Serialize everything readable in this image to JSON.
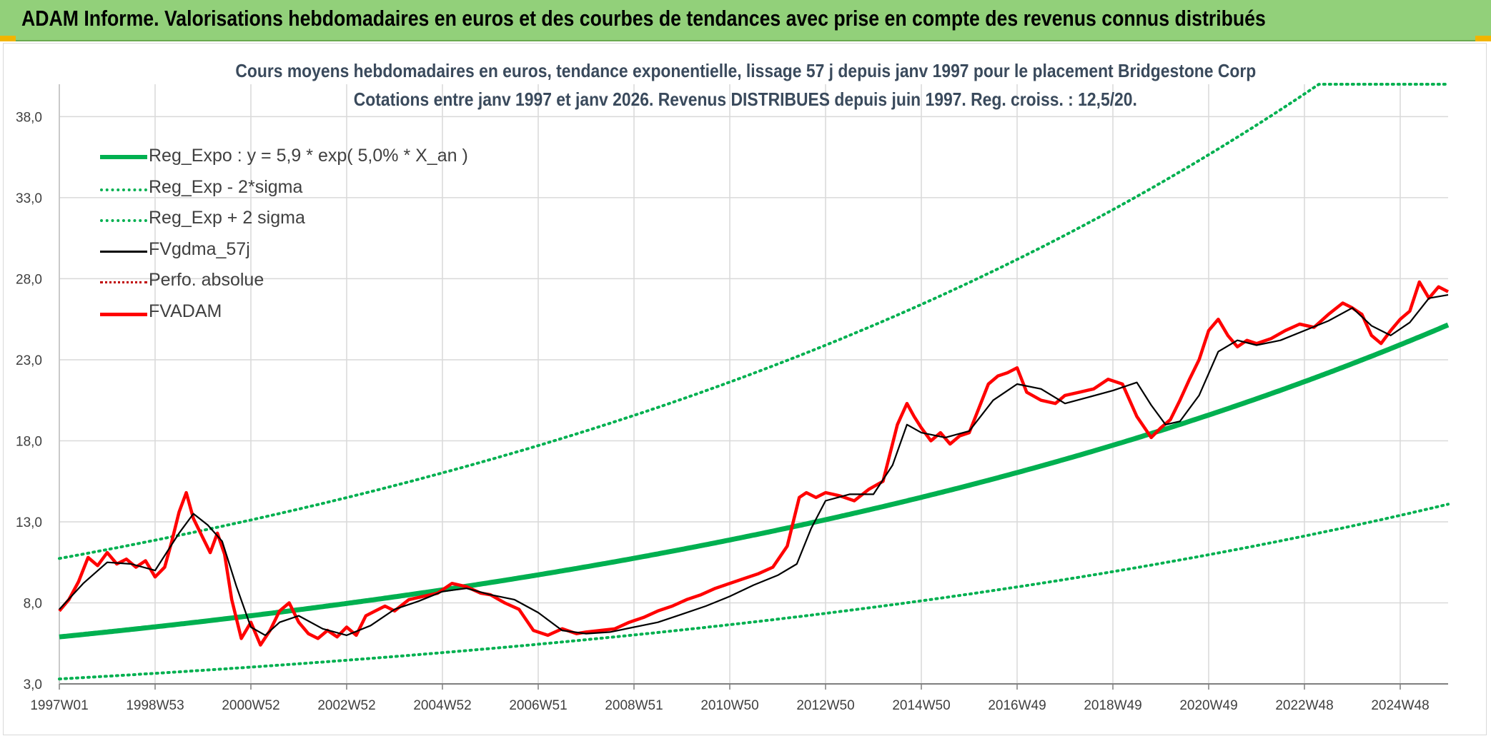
{
  "banner": {
    "title": "ADAM Informe. Valorisations hebdomadaires en euros et des courbes de tendances avec prise en compte des revenus connus distribués"
  },
  "colors": {
    "banner_bg": "#92d07a",
    "reg_expo": "#00b050",
    "fvgdma": "#000000",
    "perfo": "#c00000",
    "fvadam": "#ff0000",
    "grid": "#d9d9d9",
    "corner": "#f2b400"
  },
  "chart_data": {
    "type": "line",
    "title": "Cours moyens hebdomadaires en euros, tendance exponentielle, lissage 57 j depuis janv 1997 pour le placement Bridgestone Corp",
    "subtitle": "Cotations entre janv 1997 et janv 2026. Revenus DISTRIBUES depuis juin 1997. Reg. croiss. : 12,5/20.",
    "xlabel": "",
    "ylabel": "",
    "x_ticks": [
      "1997W01",
      "1998W53",
      "2000W52",
      "2002W52",
      "2004W52",
      "2006W51",
      "2008W51",
      "2010W50",
      "2012W50",
      "2014W50",
      "2016W49",
      "2018W49",
      "2020W49",
      "2022W48",
      "2024W48"
    ],
    "x_range": [
      1997.0,
      2026.0
    ],
    "y_ticks": [
      "3,0",
      "8,0",
      "13,0",
      "18,0",
      "23,0",
      "28,0",
      "33,0",
      "38,0"
    ],
    "ylim": [
      3.0,
      40.0
    ],
    "grid": true,
    "legend_position": "top-left",
    "legend": [
      {
        "label": "Reg_Expo : y = 5,9 * exp( 5,0% *  X_an )",
        "style": "solid-thick",
        "color": "#00b050"
      },
      {
        "label": "Reg_Exp - 2*sigma",
        "style": "dotted",
        "color": "#00b050"
      },
      {
        "label": "Reg_Exp + 2 sigma",
        "style": "dotted",
        "color": "#00b050"
      },
      {
        "label": "FVgdma_57j",
        "style": "solid",
        "color": "#000000"
      },
      {
        "label": "Perfo. absolue",
        "style": "dotted",
        "color": "#c00000"
      },
      {
        "label": "FVADAM",
        "style": "solid-thick",
        "color": "#ff0000"
      }
    ],
    "regression": {
      "a": 5.9,
      "rate": 0.05,
      "x_start": 1997.0,
      "lower_factor": 0.56,
      "upper_factor": 1.82,
      "cap": 40.0
    },
    "series": [
      {
        "name": "FVADAM",
        "x": [
          1997.0,
          1997.2,
          1997.4,
          1997.6,
          1997.8,
          1998.0,
          1998.2,
          1998.4,
          1998.6,
          1998.8,
          1999.0,
          1999.2,
          1999.35,
          1999.5,
          1999.65,
          1999.8,
          2000.0,
          2000.15,
          2000.3,
          2000.45,
          2000.6,
          2000.8,
          2001.0,
          2001.2,
          2001.4,
          2001.6,
          2001.8,
          2002.0,
          2002.2,
          2002.4,
          2002.6,
          2002.8,
          2003.0,
          2003.2,
          2003.4,
          2003.6,
          2003.8,
          2004.0,
          2004.3,
          2004.6,
          2004.9,
          2005.2,
          2005.5,
          2005.8,
          2006.0,
          2006.3,
          2006.6,
          2006.9,
          2007.2,
          2007.5,
          2007.8,
          2008.0,
          2008.3,
          2008.6,
          2008.9,
          2009.2,
          2009.5,
          2009.8,
          2010.1,
          2010.4,
          2010.7,
          2011.0,
          2011.3,
          2011.6,
          2011.9,
          2012.2,
          2012.45,
          2012.6,
          2012.8,
          2013.0,
          2013.3,
          2013.6,
          2013.9,
          2014.2,
          2014.5,
          2014.7,
          2014.85,
          2015.0,
          2015.2,
          2015.4,
          2015.6,
          2015.8,
          2016.0,
          2016.2,
          2016.4,
          2016.6,
          2016.8,
          2017.0,
          2017.2,
          2017.5,
          2017.8,
          2018.0,
          2018.3,
          2018.6,
          2018.9,
          2019.2,
          2019.5,
          2019.8,
          2020.0,
          2020.2,
          2020.4,
          2020.6,
          2020.8,
          2021.0,
          2021.2,
          2021.4,
          2021.6,
          2021.8,
          2022.0,
          2022.3,
          2022.6,
          2022.9,
          2023.2,
          2023.5,
          2023.8,
          2024.0,
          2024.2,
          2024.4,
          2024.6,
          2024.8,
          2025.0,
          2025.2,
          2025.4,
          2025.6,
          2025.8,
          2026.0
        ],
        "values": [
          7.5,
          8.2,
          9.3,
          10.8,
          10.3,
          11.1,
          10.4,
          10.7,
          10.2,
          10.6,
          9.6,
          10.2,
          11.8,
          13.6,
          14.8,
          13.2,
          12.0,
          11.1,
          12.3,
          11.0,
          8.2,
          5.8,
          6.8,
          5.4,
          6.3,
          7.5,
          8.0,
          6.8,
          6.1,
          5.8,
          6.3,
          5.9,
          6.5,
          6.0,
          7.2,
          7.5,
          7.8,
          7.5,
          8.2,
          8.4,
          8.6,
          9.2,
          9.0,
          8.6,
          8.5,
          8.0,
          7.6,
          6.3,
          6.0,
          6.4,
          6.1,
          6.2,
          6.3,
          6.4,
          6.8,
          7.1,
          7.5,
          7.8,
          8.2,
          8.5,
          8.9,
          9.2,
          9.5,
          9.8,
          10.2,
          11.5,
          14.5,
          14.8,
          14.5,
          14.8,
          14.6,
          14.3,
          15.0,
          15.5,
          19.0,
          20.3,
          19.5,
          18.8,
          18.0,
          18.5,
          17.8,
          18.3,
          18.5,
          20.0,
          21.5,
          22.0,
          22.2,
          22.5,
          21.0,
          20.5,
          20.3,
          20.8,
          21.0,
          21.2,
          21.8,
          21.5,
          19.5,
          18.2,
          18.8,
          19.3,
          20.5,
          21.8,
          23.0,
          24.8,
          25.5,
          24.5,
          23.8,
          24.2,
          24.0,
          24.3,
          24.8,
          25.2,
          25.0,
          25.8,
          26.5,
          26.2,
          25.8,
          24.5,
          24.0,
          24.8,
          25.5,
          26.0,
          27.8,
          26.8,
          27.5,
          27.2
        ]
      },
      {
        "name": "FVgdma_57j",
        "x": [
          1997.0,
          1997.5,
          1998.0,
          1998.5,
          1999.0,
          1999.5,
          1999.8,
          2000.1,
          2000.4,
          2000.7,
          2001.0,
          2001.3,
          2001.6,
          2002.0,
          2002.5,
          2003.0,
          2003.5,
          2004.0,
          2004.5,
          2005.0,
          2005.5,
          2006.0,
          2006.5,
          2007.0,
          2007.5,
          2008.0,
          2008.5,
          2009.0,
          2009.5,
          2010.0,
          2010.5,
          2011.0,
          2011.5,
          2012.0,
          2012.4,
          2012.7,
          2013.0,
          2013.5,
          2014.0,
          2014.4,
          2014.7,
          2015.0,
          2015.5,
          2016.0,
          2016.5,
          2017.0,
          2017.5,
          2018.0,
          2018.5,
          2019.0,
          2019.5,
          2019.8,
          2020.1,
          2020.4,
          2020.8,
          2021.2,
          2021.6,
          2022.0,
          2022.5,
          2023.0,
          2023.5,
          2024.0,
          2024.4,
          2024.8,
          2025.2,
          2025.6,
          2026.0
        ],
        "values": [
          7.6,
          9.2,
          10.5,
          10.4,
          10.0,
          12.3,
          13.5,
          12.8,
          11.8,
          9.0,
          6.5,
          6.0,
          6.8,
          7.2,
          6.4,
          6.0,
          6.6,
          7.6,
          8.1,
          8.7,
          8.9,
          8.5,
          8.2,
          7.4,
          6.3,
          6.1,
          6.2,
          6.5,
          6.8,
          7.3,
          7.8,
          8.4,
          9.1,
          9.7,
          10.4,
          12.6,
          14.3,
          14.7,
          14.7,
          16.5,
          19.0,
          18.5,
          18.2,
          18.6,
          20.5,
          21.5,
          21.2,
          20.3,
          20.7,
          21.1,
          21.6,
          20.2,
          19.0,
          19.2,
          20.8,
          23.5,
          24.2,
          23.9,
          24.2,
          24.8,
          25.4,
          26.2,
          25.1,
          24.5,
          25.3,
          26.8,
          27.0
        ]
      }
    ]
  }
}
